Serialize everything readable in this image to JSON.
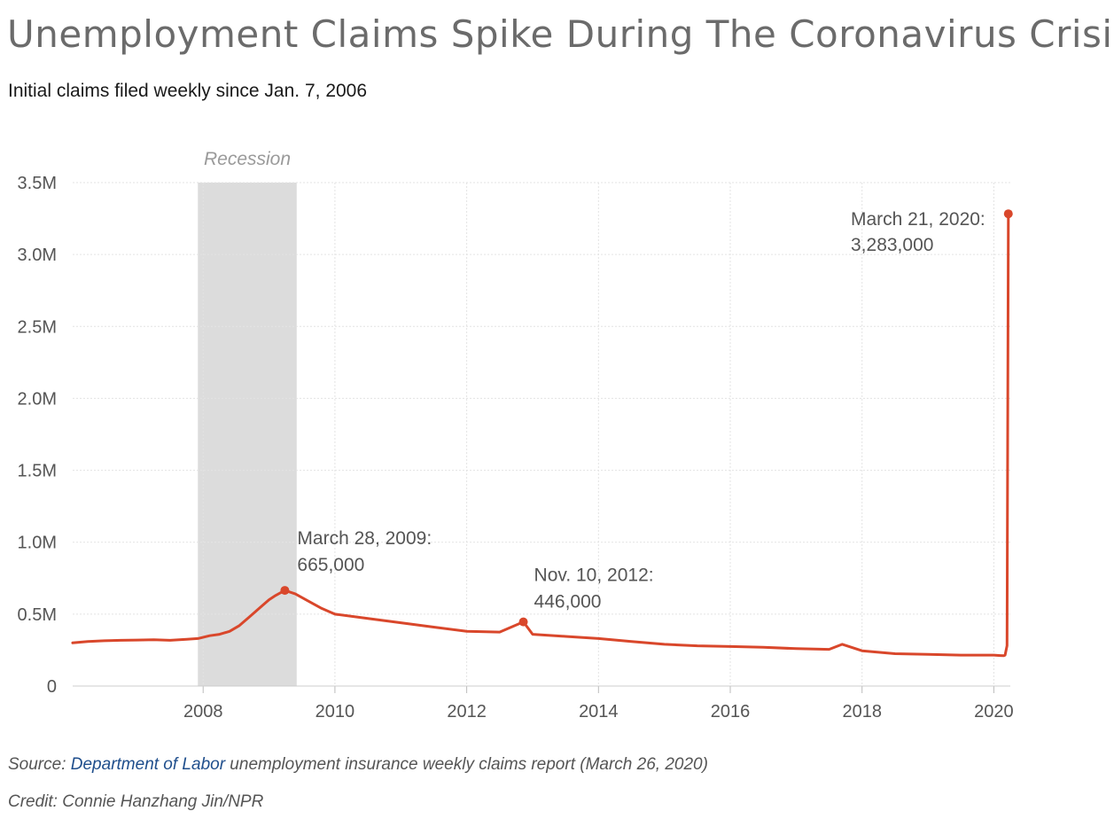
{
  "header": {
    "title": "Unemployment Claims Spike During The Coronavirus Crisis",
    "subtitle": "Initial claims filed weekly since Jan. 7, 2006"
  },
  "footer": {
    "source_prefix": "Source: ",
    "source_link": "Department of Labor",
    "source_suffix": " unemployment insurance weekly claims report (March 26, 2020)",
    "credit": "Credit: Connie Hanzhang Jin/NPR"
  },
  "colors": {
    "series": "#d9472b",
    "shade": "#dcdcdc",
    "grid": "#e3e3e3"
  },
  "chart_data": {
    "type": "line",
    "title": "Unemployment Claims Spike During The Coronavirus Crisis",
    "subtitle": "Initial claims filed weekly since Jan. 7, 2006",
    "xlabel": "",
    "ylabel": "",
    "xlim": [
      2006.02,
      2020.25
    ],
    "ylim": [
      0,
      3500000
    ],
    "grid": true,
    "y_ticks": [
      {
        "value": 0,
        "label": "0"
      },
      {
        "value": 500000,
        "label": "0.5M"
      },
      {
        "value": 1000000,
        "label": "1.0M"
      },
      {
        "value": 1500000,
        "label": "1.5M"
      },
      {
        "value": 2000000,
        "label": "2.0M"
      },
      {
        "value": 2500000,
        "label": "2.5M"
      },
      {
        "value": 3000000,
        "label": "3.0M"
      },
      {
        "value": 3500000,
        "label": "3.5M"
      }
    ],
    "x_ticks": [
      {
        "value": 2008,
        "label": "2008"
      },
      {
        "value": 2010,
        "label": "2010"
      },
      {
        "value": 2012,
        "label": "2012"
      },
      {
        "value": 2014,
        "label": "2014"
      },
      {
        "value": 2016,
        "label": "2016"
      },
      {
        "value": 2018,
        "label": "2018"
      },
      {
        "value": 2020,
        "label": "2020"
      }
    ],
    "shaded_regions": [
      {
        "label": "Recession",
        "start": 2007.92,
        "end": 2009.42
      }
    ],
    "series": [
      {
        "x": [
          2006.02,
          2006.25,
          2006.5,
          2006.75,
          2007.0,
          2007.25,
          2007.5,
          2007.75,
          2007.92,
          2008.1,
          2008.25,
          2008.4,
          2008.55,
          2008.7,
          2008.8,
          2008.9,
          2009.0,
          2009.1,
          2009.24,
          2009.4,
          2009.6,
          2009.8,
          2010.0,
          2010.5,
          2011.0,
          2011.5,
          2012.0,
          2012.5,
          2012.86,
          2013.0,
          2013.5,
          2014.0,
          2014.5,
          2015.0,
          2015.5,
          2016.0,
          2016.5,
          2017.0,
          2017.5,
          2017.7,
          2018.0,
          2018.5,
          2019.0,
          2019.5,
          2020.0,
          2020.1,
          2020.15,
          2020.17,
          2020.2,
          2020.22
        ],
        "y": [
          300000,
          310000,
          315000,
          318000,
          320000,
          322000,
          318000,
          325000,
          330000,
          350000,
          360000,
          380000,
          420000,
          480000,
          520000,
          560000,
          600000,
          630000,
          665000,
          640000,
          590000,
          540000,
          500000,
          470000,
          440000,
          410000,
          380000,
          375000,
          446000,
          360000,
          345000,
          330000,
          310000,
          290000,
          280000,
          275000,
          270000,
          260000,
          255000,
          290000,
          245000,
          225000,
          220000,
          215000,
          215000,
          212000,
          211000,
          215000,
          281000,
          3283000
        ]
      }
    ],
    "annotations": [
      {
        "x": 2009.24,
        "y": 665000,
        "line1": "March 28, 2009:",
        "line2": "665,000"
      },
      {
        "x": 2012.86,
        "y": 446000,
        "line1": "Nov. 10, 2012:",
        "line2": "446,000"
      },
      {
        "x": 2020.22,
        "y": 3283000,
        "line1": "March 21, 2020:",
        "line2": "3,283,000"
      }
    ]
  }
}
